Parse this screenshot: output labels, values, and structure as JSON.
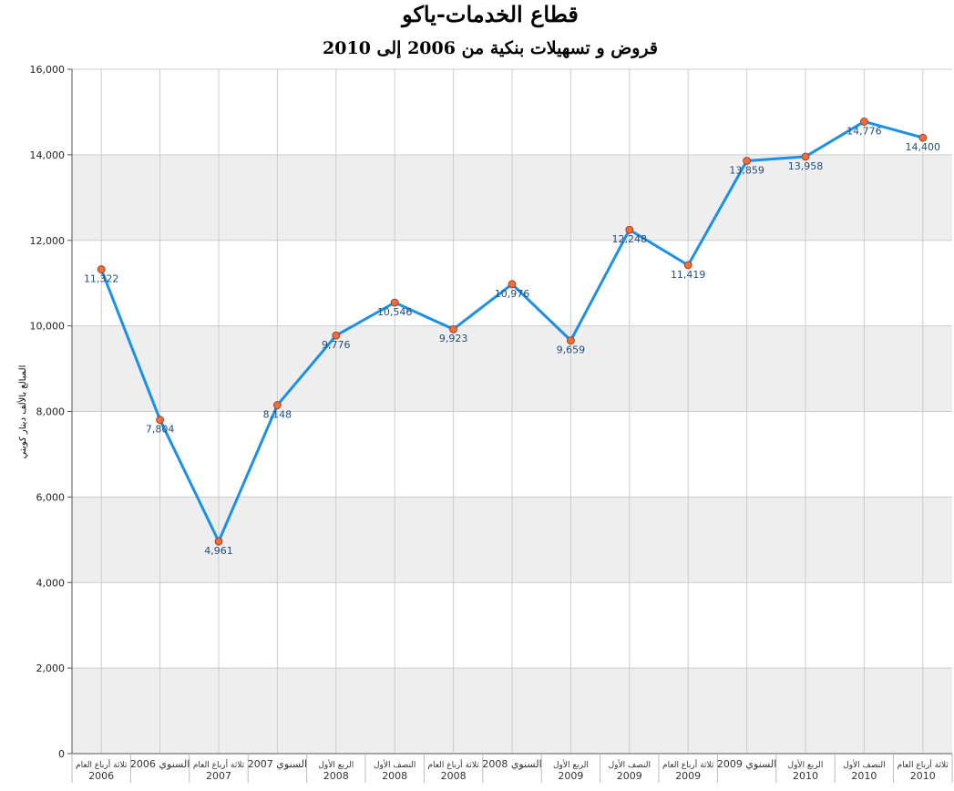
{
  "chart_data": {
    "type": "line",
    "title": "قطاع الخدمات-ياكو",
    "subtitle": "قروض و تسهيلات بنكية من 2006 إلى 2010",
    "ylabel": "المبالغ بالألف دينار كويتي",
    "xlabel": "",
    "ylim": [
      0,
      16000
    ],
    "yticks": [
      "0",
      "2,000",
      "4,000",
      "6,000",
      "8,000",
      "10,000",
      "12,000",
      "14,000",
      "16,000"
    ],
    "ytick_values": [
      0,
      2000,
      4000,
      6000,
      8000,
      10000,
      12000,
      14000,
      16000
    ],
    "grid": true,
    "band_color": "#eeeeee",
    "line_color": "#1a90e6",
    "marker_color": "#f26b3a",
    "categories": [
      {
        "label1": "ثلاثة أرباع العام",
        "label2": "2006"
      },
      {
        "label1": "السنوي 2006",
        "label2": ""
      },
      {
        "label1": "ثلاثة أرباع العام",
        "label2": "2007"
      },
      {
        "label1": "السنوي 2007",
        "label2": ""
      },
      {
        "label1": "الربع الأول",
        "label2": "2008"
      },
      {
        "label1": "النصف الأول",
        "label2": "2008"
      },
      {
        "label1": "ثلاثة أرباع العام",
        "label2": "2008"
      },
      {
        "label1": "السنوي 2008",
        "label2": ""
      },
      {
        "label1": "الربع الأول",
        "label2": "2009"
      },
      {
        "label1": "النصف الأول",
        "label2": "2009"
      },
      {
        "label1": "ثلاثة أرباع العام",
        "label2": "2009"
      },
      {
        "label1": "السنوي 2009",
        "label2": ""
      },
      {
        "label1": "الربع الأول",
        "label2": "2010"
      },
      {
        "label1": "النصف الأول",
        "label2": "2010"
      },
      {
        "label1": "ثلاثة أرباع العام",
        "label2": "2010"
      }
    ],
    "values": [
      11322,
      7804,
      4961,
      8148,
      9776,
      10546,
      9923,
      10976,
      9659,
      12248,
      11419,
      13859,
      13958,
      14776,
      14400
    ],
    "value_labels": [
      "11,322",
      "7,804",
      "4,961",
      "8,148",
      "9,776",
      "10,546",
      "9,923",
      "10,976",
      "9,659",
      "12,248",
      "11,419",
      "13,859",
      "13,958",
      "14,776",
      "14,400"
    ]
  }
}
